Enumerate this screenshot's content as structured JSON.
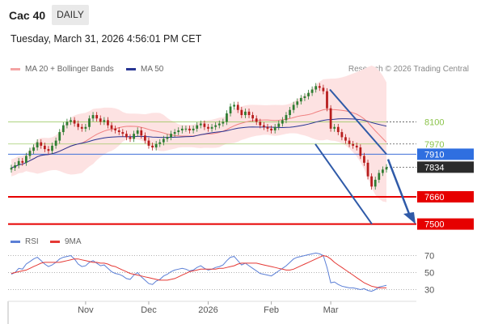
{
  "header": {
    "symbol": "Cac 40",
    "period": "DAILY",
    "timestamp": "Tuesday, March 31, 2026 4:56:01 PM CET"
  },
  "legend": {
    "ma20_label": "MA 20 + Bollinger Bands",
    "ma50_label": "MA 50",
    "credit": "Research © 2026 Trading Central"
  },
  "rsi_legend": {
    "rsi_label": "RSI",
    "ma_label": "9MA"
  },
  "colors": {
    "candle_up": "#2e7d32",
    "candle_down": "#b71c1c",
    "bollinger_fill": "#fde2e2",
    "ma20": "#f08080",
    "ma50": "#283593",
    "support": "#e60000",
    "pivot": "#3f6fd8",
    "resistance": "#8bc34a",
    "rsi": "#5b7fd6",
    "rsi_ma": "#e53935",
    "arrow": "#2f5aa8"
  },
  "chart_data": [
    {
      "type": "candlestick",
      "title": "Cac 40 DAILY",
      "x_ticks": [
        "Nov",
        "Dec",
        "2026",
        "Feb",
        "Mar"
      ],
      "ylim": [
        7460,
        8340
      ],
      "key_levels": [
        {
          "label": "8100",
          "role": "resistance",
          "value": 8100
        },
        {
          "label": "7970",
          "role": "resistance",
          "value": 7970
        },
        {
          "label": "7910",
          "role": "pivot",
          "value": 7910
        },
        {
          "label": "7834",
          "role": "last",
          "value": 7834
        },
        {
          "label": "7660",
          "role": "support",
          "value": 7660
        },
        {
          "label": "7500",
          "role": "support",
          "value": 7500
        }
      ],
      "close": [
        7830,
        7845,
        7870,
        7860,
        7900,
        7930,
        7950,
        7980,
        7960,
        7940,
        7930,
        7960,
        7990,
        8040,
        8080,
        8100,
        8110,
        8090,
        8070,
        8060,
        8070,
        8120,
        8140,
        8120,
        8100,
        8110,
        8080,
        8060,
        8050,
        8040,
        8030,
        8010,
        8000,
        8030,
        8050,
        8020,
        7990,
        7960,
        7950,
        7970,
        7980,
        8000,
        8010,
        8030,
        8040,
        8050,
        8060,
        8060,
        8050,
        8060,
        8080,
        8090,
        8070,
        8060,
        8070,
        8080,
        8090,
        8100,
        8150,
        8190,
        8200,
        8170,
        8140,
        8160,
        8140,
        8120,
        8100,
        8080,
        8070,
        8060,
        8050,
        8070,
        8090,
        8110,
        8140,
        8170,
        8200,
        8220,
        8240,
        8250,
        8270,
        8290,
        8310,
        8300,
        8280,
        8180,
        8060,
        8070,
        8040,
        8010,
        7990,
        7970,
        7960,
        7950,
        7900,
        7860,
        7780,
        7720,
        7760,
        7800,
        7820,
        7834
      ],
      "series": [
        {
          "name": "MA 20"
        },
        {
          "name": "MA 50"
        }
      ]
    },
    {
      "type": "line",
      "title": "RSI",
      "y_ticks": [
        70,
        50,
        30
      ],
      "ylim": [
        20,
        80
      ],
      "series": [
        {
          "name": "RSI",
          "values": [
            48,
            50,
            55,
            54,
            60,
            63,
            66,
            68,
            64,
            60,
            57,
            59,
            62,
            66,
            68,
            69,
            70,
            66,
            60,
            57,
            58,
            62,
            64,
            61,
            58,
            59,
            55,
            51,
            49,
            48,
            46,
            43,
            42,
            47,
            50,
            45,
            41,
            37,
            36,
            40,
            42,
            46,
            48,
            51,
            53,
            54,
            55,
            54,
            52,
            53,
            56,
            58,
            55,
            53,
            54,
            56,
            57,
            59,
            64,
            68,
            69,
            64,
            59,
            61,
            58,
            55,
            52,
            49,
            48,
            47,
            46,
            49,
            52,
            55,
            58,
            62,
            66,
            68,
            69,
            70,
            71,
            72,
            73,
            72,
            70,
            56,
            38,
            39,
            36,
            34,
            33,
            32,
            32,
            31,
            30,
            31,
            29,
            28,
            30,
            33,
            34,
            35
          ]
        },
        {
          "name": "9MA",
          "values": [
            49,
            50,
            51,
            52,
            53,
            55,
            57,
            59,
            61,
            62,
            62,
            62,
            62,
            62,
            63,
            64,
            65,
            66,
            66,
            65,
            64,
            63,
            62,
            62,
            61,
            61,
            60,
            58,
            57,
            55,
            53,
            51,
            49,
            48,
            47,
            46,
            45,
            44,
            43,
            42,
            41,
            41,
            41,
            42,
            43,
            45,
            47,
            49,
            51,
            52,
            53,
            54,
            54,
            54,
            54,
            54,
            55,
            55,
            56,
            57,
            58,
            60,
            61,
            61,
            61,
            61,
            61,
            60,
            59,
            58,
            57,
            56,
            55,
            54,
            53,
            53,
            54,
            56,
            58,
            60,
            62,
            64,
            66,
            68,
            70,
            69,
            66,
            62,
            59,
            56,
            53,
            50,
            47,
            44,
            41,
            38,
            36,
            34,
            33,
            32,
            32,
            32
          ]
        }
      ]
    }
  ]
}
